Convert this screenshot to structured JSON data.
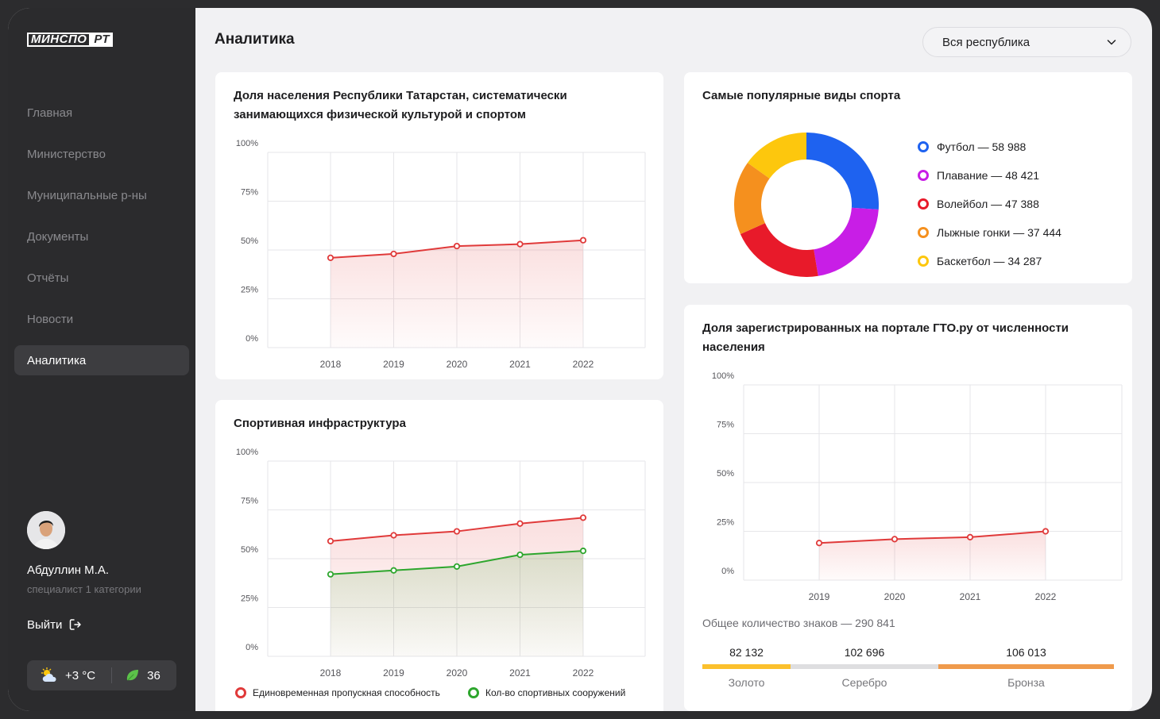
{
  "sidebar": {
    "logo": {
      "part1": "МИНСПО",
      "part2": "РТ"
    },
    "nav": [
      {
        "label": "Главная",
        "name": "nav-home"
      },
      {
        "label": "Министерство",
        "name": "nav-ministry"
      },
      {
        "label": "Муниципальные р-ны",
        "name": "nav-municipal"
      },
      {
        "label": "Документы",
        "name": "nav-documents"
      },
      {
        "label": "Отчёты",
        "name": "nav-reports"
      },
      {
        "label": "Новости",
        "name": "nav-news"
      },
      {
        "label": "Аналитика",
        "name": "nav-analytics",
        "active": true
      }
    ],
    "user": {
      "name": "Абдуллин М.А.",
      "role": "специалист 1 категории"
    },
    "logout_label": "Выйти",
    "weather": {
      "temp": "+3 °C",
      "aqi": "36"
    }
  },
  "header": {
    "title": "Аналитика",
    "region_select": {
      "value": "Вся республика"
    }
  },
  "colors": {
    "red": "#e03a3a",
    "green": "#2da62d",
    "blue": "#1e62f0",
    "purple": "#c81ee6",
    "crimson": "#e81a2a",
    "orange": "#f5901e",
    "yellow": "#fdc70d",
    "gold": "#fbc02d",
    "silver": "#dedee0",
    "bronze": "#ef9a4c"
  },
  "chart_data": [
    {
      "id": "population-share",
      "type": "area",
      "title": "Доля населения Республики Татарстан, систематически занимающихся физической культурой и спортом",
      "x": [
        "2018",
        "2019",
        "2020",
        "2021",
        "2022"
      ],
      "yticks": [
        "100%",
        "75%",
        "50%",
        "25%",
        "0%"
      ],
      "ylim": [
        0,
        100
      ],
      "grid": true,
      "series": [
        {
          "values": [
            46,
            48,
            52,
            53,
            55
          ],
          "color": "#e03a3a"
        }
      ]
    },
    {
      "id": "popular-sports",
      "type": "pie",
      "title": "Самые популярные виды спорта",
      "slices": [
        {
          "label": "Футбол — 58 988",
          "value": 58988,
          "color": "#1e62f0"
        },
        {
          "label": "Плавание — 48 421",
          "value": 48421,
          "color": "#c81ee6"
        },
        {
          "label": "Волейбол — 47 388",
          "value": 47388,
          "color": "#e81a2a"
        },
        {
          "label": "Лыжные гонки — 37 444",
          "value": 37444,
          "color": "#f5901e"
        },
        {
          "label": "Баскетбол — 34 287",
          "value": 34287,
          "color": "#fdc70d"
        }
      ]
    },
    {
      "id": "infrastructure",
      "type": "area",
      "title": "Спортивная инфраструктура",
      "x": [
        "2018",
        "2019",
        "2020",
        "2021",
        "2022"
      ],
      "yticks": [
        "100%",
        "75%",
        "50%",
        "25%",
        "0%"
      ],
      "ylim": [
        0,
        100
      ],
      "grid": true,
      "series": [
        {
          "name": "Единовременная пропускная способность",
          "values": [
            59,
            62,
            64,
            68,
            71
          ],
          "color": "#e03a3a"
        },
        {
          "name": "Кол-во спортивных сооружений",
          "values": [
            42,
            44,
            46,
            52,
            54
          ],
          "color": "#2da62d"
        }
      ]
    },
    {
      "id": "gto-share",
      "type": "area",
      "title": "Доля зарегистрированных на портале ГТО.ру от численности населения",
      "x": [
        "2019",
        "2020",
        "2021",
        "2022"
      ],
      "yticks": [
        "100%",
        "75%",
        "50%",
        "25%",
        "0%"
      ],
      "ylim": [
        0,
        100
      ],
      "grid": true,
      "series": [
        {
          "values": [
            19,
            21,
            22,
            25
          ],
          "color": "#e03a3a"
        }
      ]
    }
  ],
  "gto_medals": {
    "total_label": "Общее количество знаков — 290 841",
    "items": [
      {
        "label": "Золото",
        "value": "82 132",
        "count": 82132
      },
      {
        "label": "Серебро",
        "value": "102 696",
        "count": 102696
      },
      {
        "label": "Бронза",
        "value": "106 013",
        "count": 106013
      }
    ]
  }
}
